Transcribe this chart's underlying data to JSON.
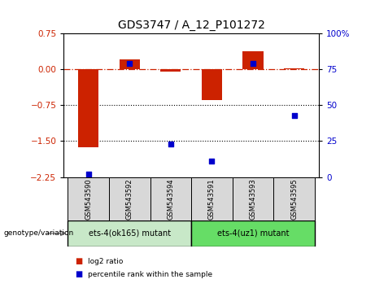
{
  "title": "GDS3747 / A_12_P101272",
  "samples": [
    "GSM543590",
    "GSM543592",
    "GSM543594",
    "GSM543591",
    "GSM543593",
    "GSM543595"
  ],
  "log2_ratio": [
    -1.62,
    0.21,
    -0.055,
    -0.65,
    0.38,
    0.018
  ],
  "percentile_rank": [
    2,
    79,
    23,
    11,
    79,
    43
  ],
  "bar_color": "#cc2200",
  "dot_color": "#0000cc",
  "ylim_left": [
    -2.25,
    0.75
  ],
  "ylim_right": [
    0,
    100
  ],
  "yticks_left": [
    0.75,
    0,
    -0.75,
    -1.5,
    -2.25
  ],
  "yticks_right": [
    100,
    75,
    50,
    25,
    0
  ],
  "dotted_lines": [
    -0.75,
    -1.5
  ],
  "group1_label": "ets-4(ok165) mutant",
  "group2_label": "ets-4(uz1) mutant",
  "group1_indices": [
    0,
    1,
    2
  ],
  "group2_indices": [
    3,
    4,
    5
  ],
  "group1_color": "#c8e8c8",
  "group2_color": "#66dd66",
  "genotype_label": "genotype/variation",
  "legend_log2": "log2 ratio",
  "legend_pct": "percentile rank within the sample",
  "bar_width": 0.5,
  "sample_bg_color": "#d8d8d8",
  "title_fontsize": 10
}
